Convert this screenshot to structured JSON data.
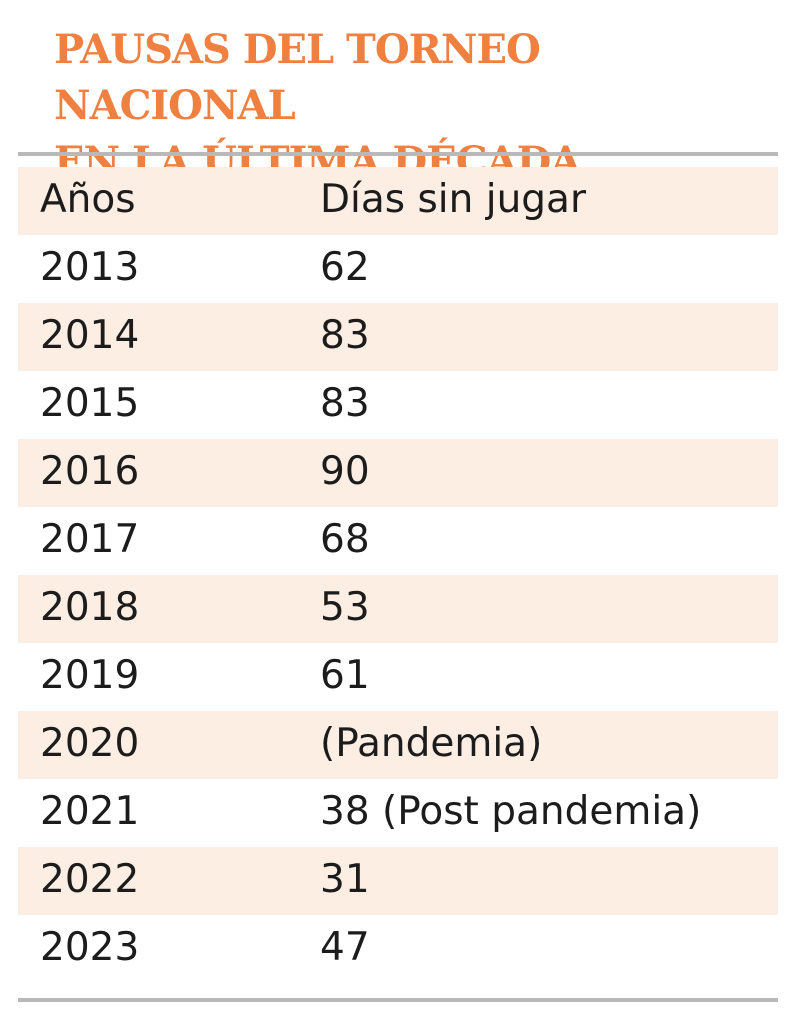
{
  "title": {
    "line1": "PAUSAS DEL TORNEO NACIONAL",
    "line2": "EN LA ÚLTIMA DÉCADA"
  },
  "colors": {
    "title": "#f08040",
    "row_shade": "#fdeee3",
    "rule": "#b9b9b9",
    "text": "#1c1c1c"
  },
  "chart_data": {
    "type": "table",
    "title": "PAUSAS DEL TORNEO NACIONAL EN LA ÚLTIMA DÉCADA",
    "columns": [
      "Años",
      "Días sin jugar"
    ],
    "rows": [
      [
        "2013",
        "62"
      ],
      [
        "2014",
        "83"
      ],
      [
        "2015",
        "83"
      ],
      [
        "2016",
        "90"
      ],
      [
        "2017",
        "68"
      ],
      [
        "2018",
        "53"
      ],
      [
        "2019",
        "61"
      ],
      [
        "2020",
        "(Pandemia)"
      ],
      [
        "2021",
        "38 (Post pandemia)"
      ],
      [
        "2022",
        "31"
      ],
      [
        "2023",
        "47"
      ]
    ]
  }
}
